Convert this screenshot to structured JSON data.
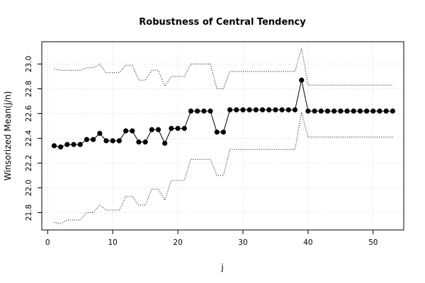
{
  "chart_data": {
    "type": "line",
    "title": "Robustness of Central Tendency",
    "xlabel": "j",
    "ylabel": "Winsorized Mean(j/n)",
    "xlim": [
      -0.9,
      54.7
    ],
    "ylim": [
      21.66,
      23.18
    ],
    "xticks": [
      0,
      10,
      20,
      30,
      40,
      50
    ],
    "yticks": [
      21.8,
      22.0,
      22.2,
      22.4,
      22.6,
      22.8,
      23.0
    ],
    "xtick_labels": [
      "0",
      "10",
      "20",
      "30",
      "40",
      "50"
    ],
    "ytick_labels": [
      "21.8",
      "22.0",
      "22.2",
      "22.4",
      "22.6",
      "22.8",
      "23.0"
    ],
    "grid": true,
    "series": [
      {
        "style": "points-and-line",
        "x": [
          1,
          2,
          3,
          4,
          5,
          6,
          7,
          8,
          9,
          10,
          11,
          12,
          13,
          14,
          15,
          16,
          17,
          18,
          19,
          20,
          21,
          22,
          23,
          24,
          25,
          26,
          27,
          28,
          29,
          30,
          31,
          32,
          33,
          34,
          35,
          36,
          37,
          38,
          39,
          40,
          41,
          42,
          43,
          44,
          45,
          46,
          47,
          48,
          49,
          50,
          51,
          52,
          53
        ],
        "values": [
          22.34,
          22.33,
          22.35,
          22.35,
          22.35,
          22.39,
          22.39,
          22.44,
          22.38,
          22.38,
          22.38,
          22.46,
          22.46,
          22.37,
          22.37,
          22.47,
          22.47,
          22.36,
          22.48,
          22.48,
          22.48,
          22.62,
          22.62,
          22.62,
          22.62,
          22.45,
          22.45,
          22.63,
          22.63,
          22.63,
          22.63,
          22.63,
          22.63,
          22.63,
          22.63,
          22.63,
          22.63,
          22.63,
          22.87,
          22.62,
          22.62,
          22.62,
          22.62,
          22.62,
          22.62,
          22.62,
          22.62,
          22.62,
          22.62,
          22.62,
          22.62,
          22.62,
          22.62
        ]
      },
      {
        "style": "dotted",
        "x": [
          1,
          2,
          3,
          4,
          5,
          6,
          7,
          8,
          9,
          10,
          11,
          12,
          13,
          14,
          15,
          16,
          17,
          18,
          19,
          20,
          21,
          22,
          23,
          24,
          25,
          26,
          27,
          28,
          29,
          30,
          31,
          32,
          33,
          34,
          35,
          36,
          37,
          38,
          39,
          40,
          41,
          42,
          43,
          44,
          45,
          46,
          47,
          48,
          49,
          50,
          51,
          52,
          53
        ],
        "values": [
          22.96,
          22.95,
          22.95,
          22.95,
          22.95,
          22.97,
          22.97,
          23.0,
          22.93,
          22.93,
          22.93,
          22.99,
          22.99,
          22.87,
          22.87,
          22.95,
          22.95,
          22.82,
          22.9,
          22.9,
          22.9,
          23.0,
          23.0,
          23.0,
          23.0,
          22.8,
          22.8,
          22.94,
          22.94,
          22.94,
          22.94,
          22.94,
          22.94,
          22.94,
          22.94,
          22.94,
          22.94,
          22.94,
          23.13,
          22.83,
          22.83,
          22.83,
          22.83,
          22.83,
          22.83,
          22.83,
          22.83,
          22.83,
          22.83,
          22.83,
          22.83,
          22.83,
          22.83
        ]
      },
      {
        "style": "dotted",
        "x": [
          1,
          2,
          3,
          4,
          5,
          6,
          7,
          8,
          9,
          10,
          11,
          12,
          13,
          14,
          15,
          16,
          17,
          18,
          19,
          20,
          21,
          22,
          23,
          24,
          25,
          26,
          27,
          28,
          29,
          30,
          31,
          32,
          33,
          34,
          35,
          36,
          37,
          38,
          39,
          40,
          41,
          42,
          43,
          44,
          45,
          46,
          47,
          48,
          49,
          50,
          51,
          52,
          53
        ],
        "values": [
          21.72,
          21.71,
          21.74,
          21.74,
          21.74,
          21.8,
          21.8,
          21.86,
          21.82,
          21.82,
          21.82,
          21.93,
          21.93,
          21.86,
          21.86,
          21.99,
          21.99,
          21.9,
          22.06,
          22.06,
          22.06,
          22.23,
          22.23,
          22.23,
          22.23,
          22.1,
          22.1,
          22.31,
          22.31,
          22.31,
          22.31,
          22.31,
          22.31,
          22.31,
          22.31,
          22.31,
          22.31,
          22.31,
          22.61,
          22.41,
          22.41,
          22.41,
          22.41,
          22.41,
          22.41,
          22.41,
          22.41,
          22.41,
          22.41,
          22.41,
          22.41,
          22.41,
          22.41
        ]
      }
    ]
  }
}
